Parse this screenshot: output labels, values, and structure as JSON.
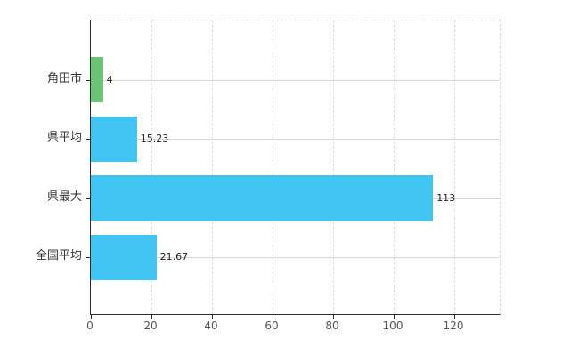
{
  "chart_data": {
    "type": "bar",
    "orientation": "horizontal",
    "title": "",
    "xlabel": "",
    "ylabel": "",
    "categories": [
      "角田市",
      "県平均",
      "県最大",
      "全国平均"
    ],
    "values": [
      4,
      15.23,
      113,
      21.67
    ],
    "value_labels": [
      "4",
      "15.23",
      "113",
      "21.67"
    ],
    "bar_colors": [
      "#6bc475",
      "#41c4f1",
      "#41c4f1",
      "#41c4f1"
    ],
    "xlim": [
      0,
      135
    ],
    "x_ticks": [
      "0",
      "20",
      "40",
      "60",
      "80",
      "100",
      "120"
    ],
    "x_tick_values": [
      0,
      20,
      40,
      60,
      80,
      100,
      120
    ],
    "grid": true,
    "legend": false
  },
  "colors": {
    "background": "#ffffff",
    "axis": "#2b2b2b",
    "grid_vertical": "#dcdcdc",
    "grid_horizontal": "#d3dad3",
    "bar_green": "#6bc475",
    "bar_blue": "#41c4f1",
    "category_label": "#333333",
    "value_label": "#222222",
    "tick_label": "#555555"
  }
}
